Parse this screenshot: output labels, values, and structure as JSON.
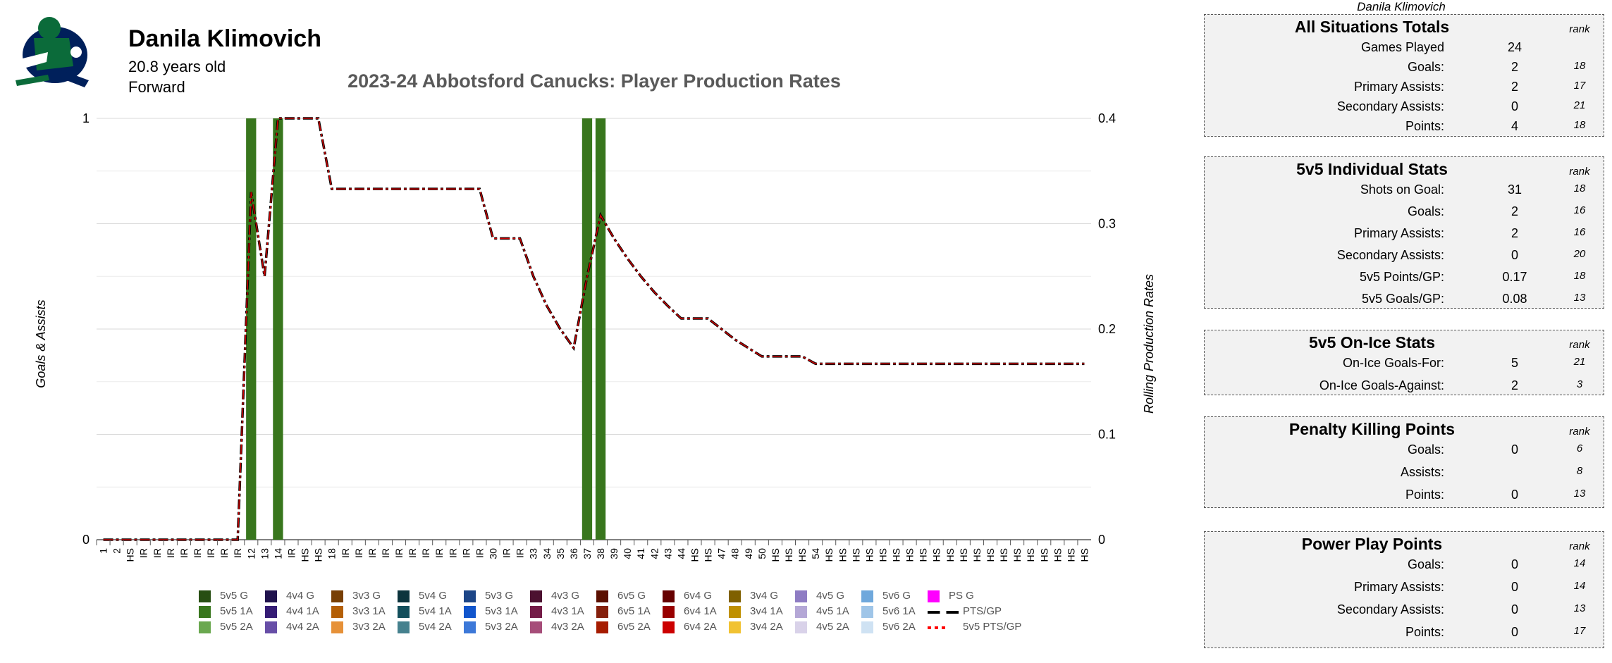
{
  "player": {
    "name": "Danila Klimovich",
    "age": "20.8 years old",
    "position": "Forward"
  },
  "panel_name": "Danila Klimovich",
  "colors": {
    "bar": "#38761d",
    "line_outer": "#000000",
    "line_inner": "#cc0000",
    "grid": "#d9d9d9"
  },
  "chart_data": {
    "type": "bar+line",
    "title": "2023-24 Abbotsford Canucks: Player Production Rates",
    "ylabel_left": "Goals & Assists",
    "ylabel_right": "Rolling Production Rates",
    "left_ticks": [
      "0",
      "1"
    ],
    "right_ticks": [
      "0",
      "0.1",
      "0.2",
      "0.3",
      "0.4"
    ],
    "ylim_left": [
      0,
      1
    ],
    "ylim_right": [
      0,
      0.4
    ],
    "categories": [
      "1",
      "2",
      "HS",
      "IR",
      "IR",
      "IR",
      "IR",
      "IR",
      "IR",
      "IR",
      "IR",
      "12",
      "13",
      "14",
      "IR",
      "HS",
      "HS",
      "18",
      "IR",
      "IR",
      "IR",
      "IR",
      "IR",
      "IR",
      "IR",
      "IR",
      "IR",
      "IR",
      "IR",
      "30",
      "IR",
      "IR",
      "33",
      "34",
      "35",
      "36",
      "37",
      "38",
      "39",
      "40",
      "41",
      "42",
      "43",
      "44",
      "HS",
      "HS",
      "47",
      "48",
      "49",
      "50",
      "HS",
      "HS",
      "HS",
      "54",
      "HS",
      "HS",
      "HS",
      "HS",
      "HS",
      "HS",
      "HS",
      "HS",
      "HS",
      "HS",
      "HS",
      "HS",
      "HS",
      "HS",
      "HS",
      "HS",
      "HS",
      "HS",
      "HS",
      "HS"
    ],
    "series": [
      {
        "name": "5v5 1A",
        "type": "bar",
        "values": [
          0,
          0,
          0,
          0,
          0,
          0,
          0,
          0,
          0,
          0,
          0,
          1,
          0,
          1,
          0,
          0,
          0,
          0,
          0,
          0,
          0,
          0,
          0,
          0,
          0,
          0,
          0,
          0,
          0,
          0,
          0,
          0,
          0,
          0,
          0,
          0,
          1,
          1,
          0,
          0,
          0,
          0,
          0,
          0,
          0,
          0,
          0,
          0,
          0,
          0,
          0,
          0,
          0,
          0,
          0,
          0,
          0,
          0,
          0,
          0,
          0,
          0,
          0,
          0,
          0,
          0,
          0,
          0,
          0,
          0,
          0,
          0,
          0,
          0
        ]
      },
      {
        "name": "PTS/GP",
        "type": "line",
        "axis": "right",
        "values": [
          0,
          0,
          0,
          0,
          0,
          0,
          0,
          0,
          0,
          0,
          0,
          0.33,
          0.25,
          0.4,
          0.4,
          0.4,
          0.4,
          0.333,
          0.333,
          0.333,
          0.333,
          0.333,
          0.333,
          0.333,
          0.333,
          0.333,
          0.333,
          0.333,
          0.333,
          0.286,
          0.286,
          0.286,
          0.25,
          0.222,
          0.2,
          0.182,
          0.25,
          0.308,
          0.286,
          0.267,
          0.25,
          0.235,
          0.222,
          0.21,
          0.21,
          0.21,
          0.2,
          0.19,
          0.182,
          0.174,
          0.174,
          0.174,
          0.174,
          0.167,
          0.167,
          0.167,
          0.167,
          0.167,
          0.167,
          0.167,
          0.167,
          0.167,
          0.167,
          0.167,
          0.167,
          0.167,
          0.167,
          0.167,
          0.167,
          0.167,
          0.167,
          0.167,
          0.167,
          0.167
        ]
      }
    ],
    "legend": [
      {
        "label": "5v5 G",
        "color": "#274e13"
      },
      {
        "label": "5v5 1A",
        "color": "#38761d"
      },
      {
        "label": "5v5 2A",
        "color": "#6aa84f"
      },
      {
        "label": "4v4 G",
        "color": "#20124d"
      },
      {
        "label": "4v4 1A",
        "color": "#351c75"
      },
      {
        "label": "4v4 2A",
        "color": "#674ea7"
      },
      {
        "label": "3v3 G",
        "color": "#783f04"
      },
      {
        "label": "3v3 1A",
        "color": "#b45f06"
      },
      {
        "label": "3v3 2A",
        "color": "#e69138"
      },
      {
        "label": "5v4 G",
        "color": "#0c343d"
      },
      {
        "label": "5v4 1A",
        "color": "#134f5c"
      },
      {
        "label": "5v4 2A",
        "color": "#45818e"
      },
      {
        "label": "5v3 G",
        "color": "#1c4587"
      },
      {
        "label": "5v3 1A",
        "color": "#1155cc"
      },
      {
        "label": "5v3 2A",
        "color": "#3c78d8"
      },
      {
        "label": "4v3 G",
        "color": "#4c1130"
      },
      {
        "label": "4v3 1A",
        "color": "#741b47"
      },
      {
        "label": "4v3 2A",
        "color": "#a64d79"
      },
      {
        "label": "6v5 G",
        "color": "#5b0f00"
      },
      {
        "label": "6v5 1A",
        "color": "#85200c"
      },
      {
        "label": "6v5 2A",
        "color": "#a61c00"
      },
      {
        "label": "6v4 G",
        "color": "#660000"
      },
      {
        "label": "6v4 1A",
        "color": "#990000"
      },
      {
        "label": "6v4 2A",
        "color": "#cc0000"
      },
      {
        "label": "3v4 G",
        "color": "#7f6000"
      },
      {
        "label": "3v4 1A",
        "color": "#bf9000"
      },
      {
        "label": "3v4 2A",
        "color": "#f1c232"
      },
      {
        "label": "4v5 G",
        "color": "#8e7cc3"
      },
      {
        "label": "4v5 1A",
        "color": "#b4a7d6"
      },
      {
        "label": "4v5 2A",
        "color": "#d9d2e9"
      },
      {
        "label": "5v6 G",
        "color": "#6fa8dc"
      },
      {
        "label": "5v6 1A",
        "color": "#9fc5e8"
      },
      {
        "label": "5v6 2A",
        "color": "#cfe2f3"
      },
      {
        "label": "PS G",
        "color": "#ff00ff"
      },
      {
        "label": "PTS/GP",
        "color": "#000000"
      },
      {
        "label": "5v5 PTS/GP",
        "color": "#ff0000"
      }
    ]
  },
  "stat_boxes": [
    {
      "title": "All Situations Totals",
      "rank_label": "rank",
      "rows": [
        {
          "label": "Games Played",
          "value": "24",
          "rank": ""
        },
        {
          "label": "Goals:",
          "value": "2",
          "rank": "18"
        },
        {
          "label": "Primary Assists:",
          "value": "2",
          "rank": "17"
        },
        {
          "label": "Secondary Assists:",
          "value": "0",
          "rank": "21"
        },
        {
          "label": "Points:",
          "value": "4",
          "rank": "18"
        }
      ]
    },
    {
      "title": "5v5 Individual Stats",
      "rank_label": "rank",
      "rows": [
        {
          "label": "Shots on Goal:",
          "value": "31",
          "rank": "18"
        },
        {
          "label": "Goals:",
          "value": "2",
          "rank": "16"
        },
        {
          "label": "Primary Assists:",
          "value": "2",
          "rank": "16"
        },
        {
          "label": "Secondary Assists:",
          "value": "0",
          "rank": "20"
        },
        {
          "label": "5v5 Points/GP:",
          "value": "0.17",
          "rank": "18"
        },
        {
          "label": "5v5 Goals/GP:",
          "value": "0.08",
          "rank": "13"
        }
      ]
    },
    {
      "title": "5v5 On-Ice Stats",
      "rank_label": "rank",
      "rows": [
        {
          "label": "On-Ice Goals-For:",
          "value": "5",
          "rank": "21"
        },
        {
          "label": "On-Ice Goals-Against:",
          "value": "2",
          "rank": "3"
        }
      ]
    },
    {
      "title": "Penalty Killing Points",
      "rank_label": "rank",
      "rows": [
        {
          "label": "Goals:",
          "value": "0",
          "rank": "6"
        },
        {
          "label": "Assists:",
          "value": "",
          "rank": "8"
        },
        {
          "label": "Points:",
          "value": "0",
          "rank": "13"
        }
      ]
    },
    {
      "title": "Power Play Points",
      "rank_label": "rank",
      "rows": [
        {
          "label": "Goals:",
          "value": "0",
          "rank": "14"
        },
        {
          "label": "Primary Assists:",
          "value": "0",
          "rank": "14"
        },
        {
          "label": "Secondary Assists:",
          "value": "0",
          "rank": "13"
        },
        {
          "label": "Points:",
          "value": "0",
          "rank": "17"
        }
      ]
    }
  ]
}
